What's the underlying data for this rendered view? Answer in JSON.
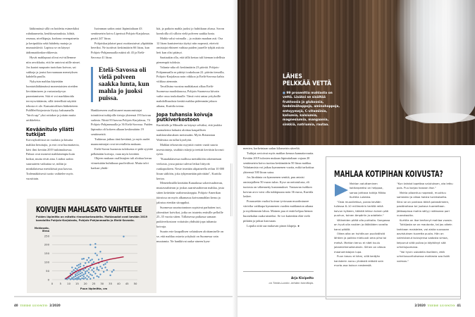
{
  "left_page": {
    "col1": [
      "lääkinnässä sillä on hoidettu esimerkiksi ruhakuumeita, keuhkosairauksia, kihtiä, reumaa, nivelkipuja, korkeaa verenpainetta ja keripukkia sekä häädetty matoja ja munuaiskiviä. Lapissa se on käynyt äidinmaidonkorvikkeesta.",
      "Hyvät mahlapuut olivat esi-isillemme niin arvokkaita, että he antoivat niille nimet. Jos kaatoi naapurin tuotolsan koivun, sai sakkoja ja joutui korvaamaan menetyksen kahdella puulla.",
      "Nykyisin mahlaa käytetään luontaislääkinnässä moneniaisten oireiden lievittämiseen ja vastustuskyvyn parantamiseen. Sitä ei voi markkinoida terveysväittämin, sillä tieteellistä näyttöä tehosta ei ole. Kansainvälisen lääketieteen PubMed-kirjastosta löytyy hakusanalla \"birch sap\" yksi rottakoe ja joitain muita artikkeleita."
    ],
    "col1_heading": "Keväänitulo yllätti tutkijat",
    "col1b": [
      "Koivuyksilöissä on vuolaita ja kitsaita mahlan heruttajia, ja erot ovat huomattavia, kävi ilmi kevään 2019 tutkimuksessa. Paksut ovat monesti mahlaisempia kuin hoikat, mutta eivät aina. Lisäksi sadon suuruuteen vaikuttaa se, mihin ja minkälaisessa metsikössä puu kasvaa. Todennäköisesti tuotto vaihtelee myös vuosittain."
    ],
    "col2a": [
      "Isoimman sadon antoi läpimitaltaan 43 senttimetrin koivu Liperissä Pohjois-Karjalassa; peräti 247 litraa.",
      "Pohjoiskarjalaiset puut osoittautuivat ylipäätään hereiksi. Ne tuottivat keskimäärin 66 litraa, kun Pohjois-Pohjanmaalla määrä oli 43 ja Etelä-Savossa 41 litraa."
    ],
    "pullquote": "Etelä-Savossa oli vielä polveen saakka lunta, kun mahla jo juoksi puissa.",
    "col2b": [
      "Hankkeeseen osallistuneet maanomistajat toimittivat tutkijoille tietoja yhteensä 193 koivun sadosta. Niistä 83 kasvaa Pohjois-Karjalassa, 74 Pohjois-Pohjanmaalla ja 36 Etelä-Savossa. Puiden läpimitta oli kokeen alkaan keskimäärin 19 senttimetriä.",
      "Tutkimus jatkuu tänä keväänä, ja myös uudet maanomistajat ovat tervetulleita mukaan.",
      "Etelä-Savon huonosta tuloksesta ei pidä syyttää pelkästään koivuja, vaan myös keväätä.",
      "Ohjeen mukaan osallistujien tuli aloittaa keruu viimeistään huhtikuun puolivälissä. Mutta talvi karkasi yhtäk-"
    ],
    "col3a": [
      "kiä, ja paikoin mahla juoksi jo huhtikuun alussa. Savon koealoilla oli silloin vielä polveen saakka lunta.",
      "Mahla valui voimalla – ja osittain maahan asti. Osa 12 litran kanistereista täyttyi niin nopeasti, etteivät omistajat ehtineet vaihtaa puiden juurelle tyhjää astiota heti kun olisi pitänyt.",
      "Saattaakin olla, että tällä kertaa tuli hieman todellista pienempiä tuloksia.",
      "Valunta-aika oli keskimäärin 23 päivää. Pohjois-Pohjanmaalla se päättyi toukokuun 22. päivän tienoilla, Pohjois-Karjalassa noin viikkoa ja Etelä-Savossa kahta viikkoa aiemmin.",
      "Tavallisina vuosina mahlakausi alkaa Etelä-Suomessa maaliskuussa, Pohjois-Suomessa kiivain vaihe osuu toukokuulle. Tämä voisi antaa yrityksille mahdollisuuksia kerätä mahlaa pidemmän jakson aikana, Kurttila toteaa."
    ],
    "col3_heading": "Jopa tuhansia koivuja putkiverkostoon",
    "col3b": [
      "Kurttilalle ja Miinalle on käynyt selväksi, että joukko suomalaisia haluaisi aloittaa kaupallisen mahlanvalutuksen metsissään. Myös Britannian Walesista on tullut kyselyitä.",
      "Mahlan tehoseotto myyntiä varten vaatii suuria investointeja, sisältää riskejä ja teettää keväisin kovasti työtä.",
      "\"Kanadalaisessa mallissa metsikköön rakennetaan verkosto, jossa puista tulevat letkut liittyvät runkoputkeen. Neste imetään alipaineella reilun 10 000 litran säiliöön, joka tyhjennetään päivittäin\", Kurttila kertoo.",
      "Menetelmällä kerätään Kanadassa sokerivaahteran, mustavaahteran ja joskus saarnivaahteran mahlaa, josta sitten keitetään vaahterasiirappia. Pohjois-Amerikan itäosissa on myös alkamassa koivunmahlan keruu ja jalostus etenkin siirappiksi.",
      "Suomessa suurtuotantoon sopisivat parhaiten isot, yhtenäiset koivikot, jotka on istutettu entisille pelloille 25–35 vuotta sitten. Tällaisessa paikassa samaan putkiverkostoon voitaisiin yhdistää jopa tuhansia koivuja.",
      "Suurin este kaupallisen valutuksen aloittamiselle on se, että mahlaa ostavia yrityksiä on Suomessa vain muutamia. Ne hankkivat raaka-aineen kym-"
    ],
    "footer": {
      "page": "40",
      "brand": "TIEDE LUONTO",
      "issue": "2/2020"
    }
  },
  "chart_data": {
    "type": "scatter",
    "title": "KOIVUJEN MAHLASATO VAIHTELEE",
    "subtitle": "Puiden läpimitta on mitattu rinnankorkeudelta. Mahlasadot ovat kevään 2019 koealoilta Pohjois-Karjalasta, Pohjois-Pohjanmaalta ja Etelä-Savosta.",
    "ylabel": "Mahlasato, litraa",
    "xlabel": "Puun läpimitta, cm",
    "xlim": [
      0,
      50
    ],
    "ylim": [
      0,
      250
    ],
    "xticks": [
      0,
      5,
      10,
      15,
      20,
      25,
      30,
      35,
      40,
      45,
      50
    ],
    "yticks": [
      0,
      50,
      100,
      150,
      200,
      250
    ],
    "grid": "horizontal",
    "colors": {
      "points": "#5b93c4",
      "trend": "#b0173c",
      "background": "#efede9"
    },
    "points": [
      [
        8,
        5
      ],
      [
        9,
        3
      ],
      [
        10,
        8
      ],
      [
        10,
        15
      ],
      [
        11,
        2
      ],
      [
        11,
        20
      ],
      [
        11,
        35
      ],
      [
        12,
        5
      ],
      [
        12,
        10
      ],
      [
        12,
        28
      ],
      [
        12,
        45
      ],
      [
        12,
        70
      ],
      [
        13,
        2
      ],
      [
        13,
        15
      ],
      [
        13,
        40
      ],
      [
        13,
        55
      ],
      [
        14,
        5
      ],
      [
        14,
        20
      ],
      [
        14,
        30
      ],
      [
        14,
        48
      ],
      [
        14,
        65
      ],
      [
        15,
        2
      ],
      [
        15,
        10
      ],
      [
        15,
        25
      ],
      [
        15,
        38
      ],
      [
        15,
        60
      ],
      [
        15,
        80
      ],
      [
        16,
        5
      ],
      [
        16,
        15
      ],
      [
        16,
        30
      ],
      [
        16,
        45
      ],
      [
        16,
        70
      ],
      [
        16,
        85
      ],
      [
        17,
        2
      ],
      [
        17,
        20
      ],
      [
        17,
        35
      ],
      [
        17,
        50
      ],
      [
        17,
        75
      ],
      [
        17,
        90
      ],
      [
        18,
        8
      ],
      [
        18,
        25
      ],
      [
        18,
        40
      ],
      [
        18,
        60
      ],
      [
        18,
        118
      ],
      [
        19,
        5
      ],
      [
        19,
        18
      ],
      [
        19,
        30
      ],
      [
        19,
        55
      ],
      [
        19,
        80
      ],
      [
        19,
        120
      ],
      [
        20,
        10
      ],
      [
        20,
        35
      ],
      [
        20,
        45
      ],
      [
        20,
        65
      ],
      [
        20,
        95
      ],
      [
        21,
        3
      ],
      [
        21,
        22
      ],
      [
        21,
        50
      ],
      [
        21,
        75
      ],
      [
        21,
        112
      ],
      [
        22,
        15
      ],
      [
        22,
        40
      ],
      [
        22,
        60
      ],
      [
        22,
        100
      ],
      [
        22,
        125
      ],
      [
        23,
        5
      ],
      [
        23,
        30
      ],
      [
        23,
        70
      ],
      [
        23,
        200
      ],
      [
        23,
        110
      ],
      [
        24,
        25
      ],
      [
        24,
        55
      ],
      [
        24,
        90
      ],
      [
        24,
        115
      ],
      [
        25,
        10
      ],
      [
        25,
        45
      ],
      [
        25,
        65
      ],
      [
        25,
        100
      ],
      [
        26,
        35
      ],
      [
        26,
        150
      ],
      [
        26,
        185
      ],
      [
        26,
        205
      ],
      [
        27,
        20
      ],
      [
        27,
        70
      ],
      [
        27,
        140
      ],
      [
        27,
        60
      ],
      [
        28,
        15
      ],
      [
        28,
        55
      ],
      [
        28,
        115
      ],
      [
        28,
        95
      ],
      [
        29,
        30
      ],
      [
        29,
        75
      ],
      [
        29,
        160
      ],
      [
        30,
        65
      ],
      [
        30,
        105
      ],
      [
        30,
        120
      ],
      [
        31,
        45
      ],
      [
        31,
        85
      ],
      [
        32,
        90
      ],
      [
        32,
        70
      ],
      [
        33,
        100
      ],
      [
        33,
        55
      ],
      [
        35,
        25
      ],
      [
        36,
        45
      ],
      [
        37,
        55
      ],
      [
        43,
        247
      ]
    ],
    "trend": [
      [
        8,
        5
      ],
      [
        12,
        32
      ],
      [
        15,
        50
      ],
      [
        20,
        70
      ],
      [
        25,
        88
      ],
      [
        30,
        105
      ],
      [
        35,
        117
      ],
      [
        43,
        131
      ]
    ]
  },
  "right_page": {
    "sidebar": {
      "title_line1": "LÄHES",
      "title_line2": "PELKKÄÄ VETTÄ",
      "body": "99 prosenttia mahlasta on vettä. Lisäksi se sisältää fruktoosia ja glukoosia, hedelmähappoja, aminohappoja, entsyymejä, C-vitamiinia, kaliumia, kalsiumia, magnesiumia, mangaania, sinkkiä, natriumia, rautaa."
    },
    "col": [
      "menien, korkeintaan sadan kilometrin säteeltä.",
      "Tutkijat arvioivat myös mahlan keruun kannattavuutta. Kevään 2019 tulosten mukaan läpimitaltaan vajaan 20 senttimetrin koivu tuottaa keskimäärin 50 litraa mahlaa. Valuttamista voi jatkaa kymmenen vuotta, mikä tarkoittaa yhteensä 500 litran satoa.",
      "Jos litrahinta on kymmenen senttiä, puu antaisi omistajalleen 50 euron tulon. Kyse on nettotulosta, eli tuotosta on vähennetty kustannukset. Vastaavan isohkon koivun arvo voisi olla tukkipuuna noin 36 euroa, Kurttila laskee.",
      "Porausreiän vuoksi koivun tyviosaan muodostunee värivika vaikkapa kymmenen vuoden mahlanoton aikana ja myöhemmin lahoa. Moinen puu ei enää kelpaa hienon huonekalun raaka-aineeksi. Se voi kuitenkin elää vielä pitkään ja jatkaa kasvuaan.",
      "Lopulta siitä saa mukavan pinon klapeja. ●"
    ],
    "byline_name": "Arja Kivipelto",
    "byline_role": "on Tiede-Luonto -lehden toimittaja.",
    "box": {
      "title": "MAHLAA KOTIPIHAN KOIVUSTA?",
      "col1": [
        "Mahlan valuttaminen kotitarpeeksi on helppoa, sanoo johtava tutkija Mikko Kurttila Lukesta.",
        "\"Osta muoviletkua, poraa kevään tullessa 8–10 millimetrin terällä reikä koivun kylkeen, tökkää letkun toinen pää puuhun, toinen ämpäriin ja odottele.\"",
        "Välineiden pitää olla puhtaita. Sangossa on hyvä olla roskien ja ötököiden varalta kansi päällä.",
        "Oikea aika on huhtikuun puolivälistä lähtien ja paikka mieluusti oma piha tai metsä. Mahlan keruu ei näet kuulu jokamiehenoikeuksiin. Siihen on oltava maanomistajan lupa.",
        "Puun kasvu ei kärsi, sillä keräjän kanisterin noruu yhdestä reiästä vain murto-osa koivun nesteestä."
      ],
      "col2": [
        "\"Kun tahdot lopettaa valutuksen, ota letku pois. Puu korjaa haavan itse.\"",
        "Mahla pilaantuu nopeasti, muuttuu sameaksi ja alkaa haista tunkkaiselta. Siksi se on pantava äkkiä pakastimeen, pastöroitava tai juotava tuoreeltaan. Jääkaapissa mahla säilyy raikkaana pari vuorokautta.",
        "Kurttila on itse kerännyt mahlaa vuosia.",
        "Tutkijasta se on mautonta, tai jos oikein tarkkaan maistelee, voi aistia suussaan aavistuksen tuoretta puuta. Hän on valmistanut koivujensa sadosta simaa, keipunut siitä pullaa ja käyttänyt sitä urheilujuomana.",
        "\"Voi hyvin uskotella itselleen, että urheilusuorituksessa mahlasta saa lisää voimaa.\""
      ]
    },
    "footer": {
      "issue": "2/2020",
      "brand": "TIEDE LUONTO",
      "page": "41"
    }
  }
}
